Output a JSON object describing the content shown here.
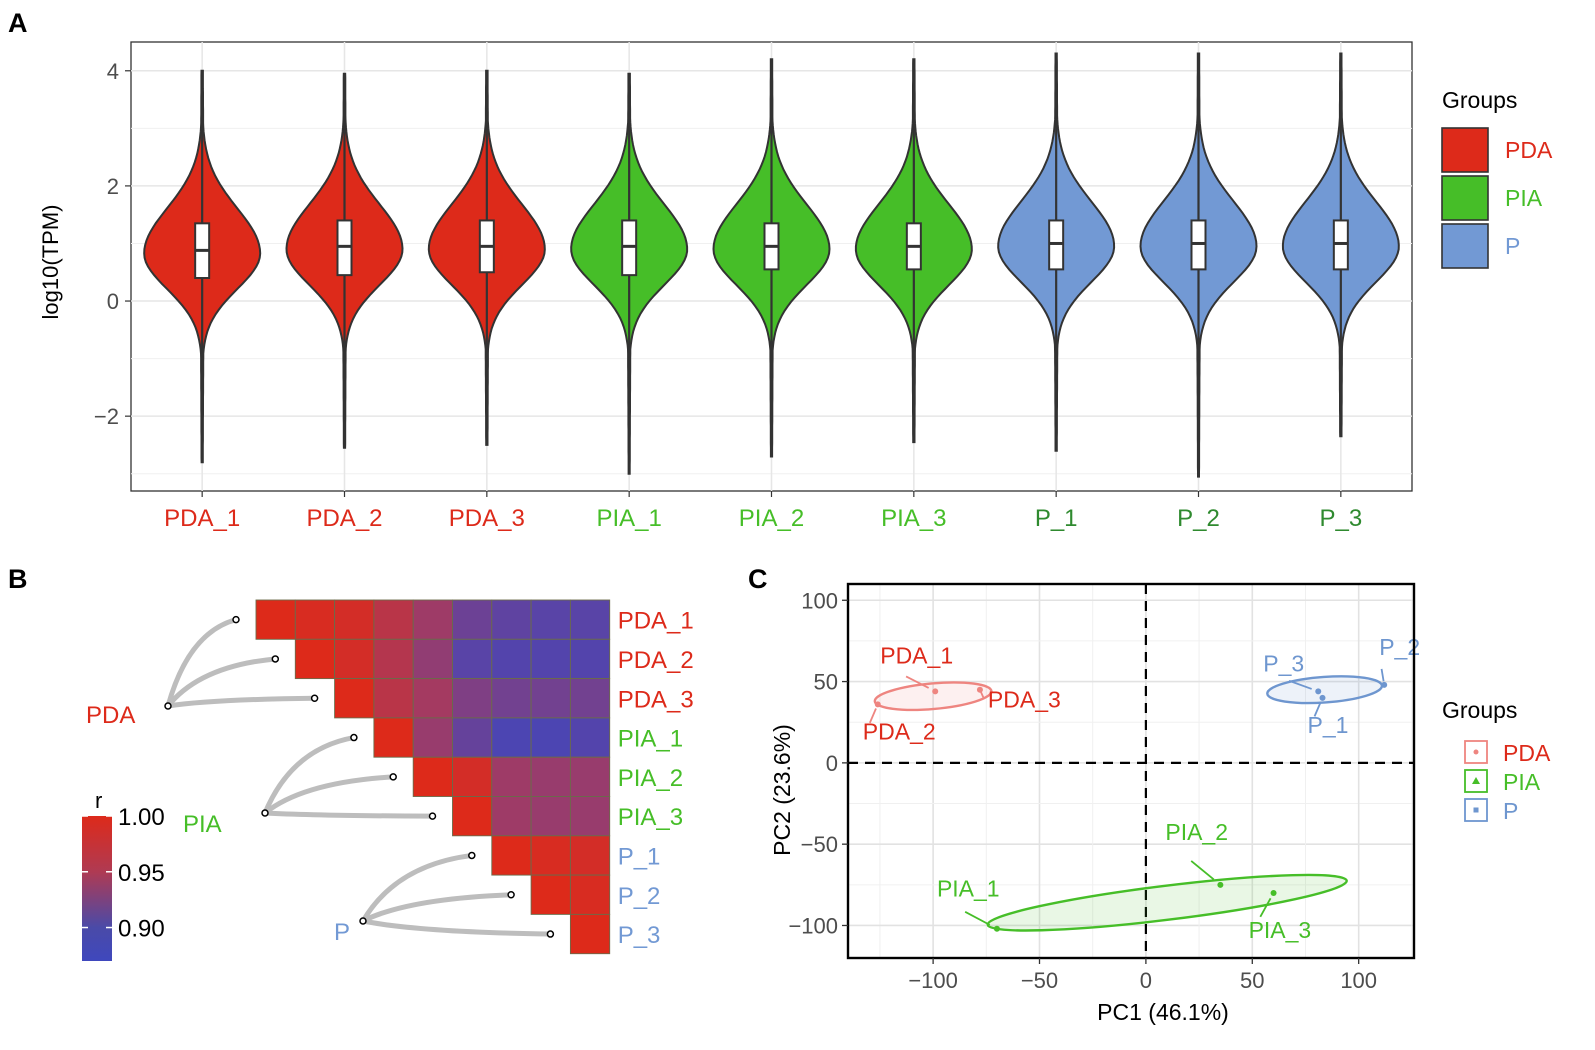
{
  "colors": {
    "PDA": "#dd2a1a",
    "PIA": "#46be28",
    "P": "#7299d4",
    "PDA_light": "#ee8580",
    "P_xtick": "#2f8a2f",
    "P_label_C": "#6e96cf",
    "outline": "#333333",
    "grid": "#e6e6e6",
    "curve": "#bdbdbd",
    "heat_high": "#dd2a1a",
    "heat_mid": "#a83a5e",
    "heat_low": "#4646b8"
  },
  "chart_data": [
    {
      "panel": "A",
      "type": "violin",
      "ylabel": "log10(TPM)",
      "ylim": [
        -3.3,
        4.5
      ],
      "yticks": [
        -2,
        0,
        2,
        4
      ],
      "yticklabels": [
        "−2",
        "0",
        "2",
        "4"
      ],
      "categories": [
        "PDA_1",
        "PDA_2",
        "PDA_3",
        "PIA_1",
        "PIA_2",
        "PIA_3",
        "P_1",
        "P_2",
        "P_3"
      ],
      "groups": [
        "PDA",
        "PDA",
        "PDA",
        "PIA",
        "PIA",
        "PIA",
        "P",
        "P",
        "P"
      ],
      "min": [
        -2.8,
        -2.55,
        -2.5,
        -3.0,
        -2.7,
        -2.45,
        -2.6,
        -3.05,
        -2.35
      ],
      "max": [
        4.0,
        3.95,
        4.0,
        3.95,
        4.2,
        4.2,
        4.3,
        4.3,
        4.3
      ],
      "q1": [
        0.4,
        0.45,
        0.5,
        0.45,
        0.55,
        0.55,
        0.55,
        0.55,
        0.55
      ],
      "median": [
        0.88,
        0.95,
        0.95,
        0.95,
        0.95,
        0.95,
        1.0,
        1.0,
        1.0
      ],
      "q3": [
        1.35,
        1.4,
        1.4,
        1.4,
        1.35,
        1.35,
        1.4,
        1.4,
        1.4
      ],
      "legend": {
        "title": "Groups",
        "entries": [
          "PDA",
          "PIA",
          "P"
        ]
      }
    },
    {
      "panel": "B",
      "type": "heatmap",
      "samples": [
        "PDA_1",
        "PDA_2",
        "PDA_3",
        "PIA_1",
        "PIA_2",
        "PIA_3",
        "P_1",
        "P_2",
        "P_3"
      ],
      "sample_groups": [
        "PDA",
        "PDA",
        "PDA",
        "PIA",
        "PIA",
        "PIA",
        "P",
        "P",
        "P"
      ],
      "groups": [
        "PDA",
        "PIA",
        "P"
      ],
      "colorbar": {
        "title": "r",
        "range": [
          0.87,
          1.0
        ],
        "ticks": [
          1.0,
          0.95,
          0.9
        ],
        "ticklabels": [
          "1.00",
          "0.95",
          "0.90"
        ]
      },
      "matrix": [
        [
          1.0,
          0.995,
          0.99,
          0.965,
          0.94,
          0.9,
          0.89,
          0.885,
          0.885
        ],
        [
          0.995,
          1.0,
          0.99,
          0.96,
          0.93,
          0.885,
          0.88,
          0.88,
          0.88
        ],
        [
          0.99,
          0.99,
          1.0,
          0.965,
          0.945,
          0.915,
          0.905,
          0.905,
          0.905
        ],
        [
          0.965,
          0.96,
          0.965,
          1.0,
          0.935,
          0.895,
          0.875,
          0.875,
          0.88
        ],
        [
          0.94,
          0.93,
          0.945,
          0.935,
          1.0,
          0.99,
          0.94,
          0.935,
          0.935
        ],
        [
          0.9,
          0.885,
          0.915,
          0.895,
          0.99,
          1.0,
          0.94,
          0.935,
          0.935
        ],
        [
          0.89,
          0.88,
          0.905,
          0.875,
          0.94,
          0.94,
          1.0,
          0.995,
          0.99
        ],
        [
          0.885,
          0.88,
          0.905,
          0.875,
          0.935,
          0.935,
          0.995,
          1.0,
          0.995
        ],
        [
          0.885,
          0.88,
          0.905,
          0.88,
          0.935,
          0.935,
          0.99,
          0.995,
          1.0
        ]
      ]
    },
    {
      "panel": "C",
      "type": "scatter",
      "xlabel": "PC1 (46.1%)",
      "ylabel": "PC2 (23.6%)",
      "xlim": [
        -140,
        126
      ],
      "ylim": [
        -120,
        110
      ],
      "xticks": [
        -100,
        -50,
        0,
        50,
        100
      ],
      "xticklabels": [
        "−100",
        "−50",
        "0",
        "50",
        "100"
      ],
      "yticks": [
        -100,
        -50,
        0,
        50,
        100
      ],
      "yticklabels": [
        "−100",
        "−50",
        "0",
        "50",
        "100"
      ],
      "points": [
        {
          "label": "PDA_1",
          "group": "PDA",
          "x": -99,
          "y": 44
        },
        {
          "label": "PDA_2",
          "group": "PDA",
          "x": -126,
          "y": 36
        },
        {
          "label": "PDA_3",
          "group": "PDA",
          "x": -78,
          "y": 45
        },
        {
          "label": "PIA_1",
          "group": "PIA",
          "x": -70,
          "y": -102
        },
        {
          "label": "PIA_2",
          "group": "PIA",
          "x": 35,
          "y": -75
        },
        {
          "label": "PIA_3",
          "group": "PIA",
          "x": 60,
          "y": -80
        },
        {
          "label": "P_1",
          "group": "P",
          "x": 83,
          "y": 40
        },
        {
          "label": "P_2",
          "group": "P",
          "x": 112,
          "y": 48
        },
        {
          "label": "P_3",
          "group": "P",
          "x": 81,
          "y": 44
        }
      ],
      "legend": {
        "title": "Groups",
        "entries": [
          "PDA",
          "PIA",
          "P"
        ]
      }
    }
  ],
  "panel_letters": [
    "A",
    "B",
    "C"
  ]
}
